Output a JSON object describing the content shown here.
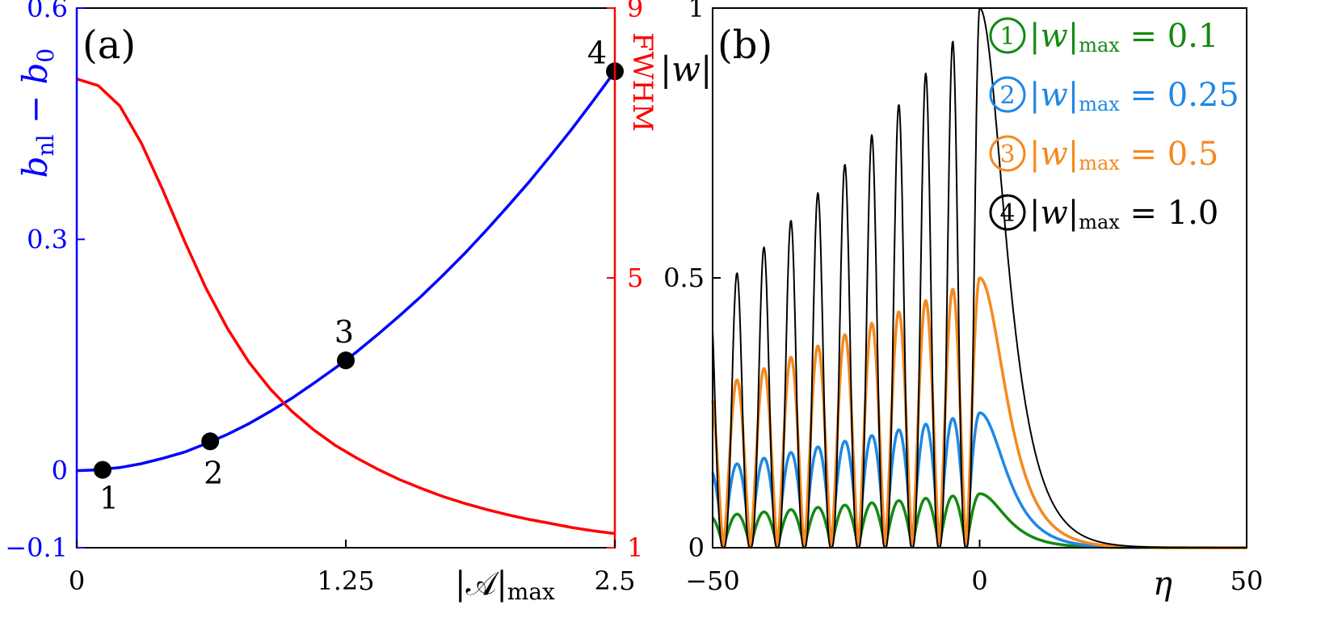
{
  "chart_data": [
    {
      "panel_label": "(a)",
      "type": "line",
      "xlabel_main": "|𝒜|",
      "xlabel_sub": "max",
      "xlim": [
        0,
        2.5
      ],
      "xticks": [
        "0",
        "1.25",
        "2.5"
      ],
      "left_axis": {
        "label_main": "b",
        "label_sub1": "nl",
        "label_mid": " − b",
        "label_sub2": "0",
        "color": "#0000ff",
        "ylim": [
          -0.1,
          0.6
        ],
        "ticks": [
          "−0.1",
          "0",
          "0.3",
          "0.6"
        ]
      },
      "right_axis": {
        "label": "FWHM",
        "color": "#ff0000",
        "ylim": [
          1,
          9
        ],
        "ticks": [
          "1",
          "5",
          "9"
        ]
      },
      "series": [
        {
          "axis": "left",
          "color": "#0000ff",
          "x": [
            0.0,
            0.1,
            0.2,
            0.3,
            0.4,
            0.5,
            0.6,
            0.7,
            0.8,
            0.9,
            1.0,
            1.1,
            1.2,
            1.25,
            1.3,
            1.4,
            1.5,
            1.6,
            1.7,
            1.8,
            1.9,
            2.0,
            2.1,
            2.2,
            2.3,
            2.4,
            2.5
          ],
          "y": [
            0.0,
            0.001,
            0.004,
            0.009,
            0.016,
            0.024,
            0.035,
            0.047,
            0.061,
            0.077,
            0.094,
            0.113,
            0.133,
            0.143,
            0.154,
            0.177,
            0.201,
            0.226,
            0.253,
            0.281,
            0.311,
            0.342,
            0.374,
            0.408,
            0.443,
            0.48,
            0.518
          ]
        },
        {
          "axis": "right",
          "color": "#ff0000",
          "x": [
            0.0,
            0.1,
            0.2,
            0.3,
            0.4,
            0.5,
            0.6,
            0.7,
            0.8,
            0.9,
            1.0,
            1.1,
            1.2,
            1.3,
            1.4,
            1.5,
            1.6,
            1.7,
            1.8,
            1.9,
            2.0,
            2.1,
            2.2,
            2.3,
            2.4,
            2.5
          ],
          "y": [
            7.95,
            7.85,
            7.55,
            7.0,
            6.3,
            5.55,
            4.85,
            4.25,
            3.75,
            3.35,
            3.02,
            2.75,
            2.52,
            2.33,
            2.16,
            2.01,
            1.88,
            1.76,
            1.66,
            1.57,
            1.49,
            1.42,
            1.36,
            1.3,
            1.25,
            1.21
          ]
        }
      ],
      "points": [
        {
          "label": "1",
          "x": 0.12,
          "y": 0.001
        },
        {
          "label": "2",
          "x": 0.62,
          "y": 0.038
        },
        {
          "label": "3",
          "x": 1.25,
          "y": 0.143
        },
        {
          "label": "4",
          "x": 2.5,
          "y": 0.518
        }
      ]
    },
    {
      "panel_label": "(b)",
      "type": "line",
      "xlabel": "η",
      "xlim": [
        -50,
        50
      ],
      "xticks": [
        "−50",
        "0",
        "50"
      ],
      "ylabel": "|w|",
      "ylim": [
        0,
        1
      ],
      "yticks": [
        "0",
        "0.5",
        "1"
      ],
      "series": [
        {
          "marker": "1",
          "name_prefix": "|w|",
          "name_sub": "max",
          "name_value": "= 0.1",
          "color": "#138a13",
          "amplitude": 0.1,
          "width": 1.6
        },
        {
          "marker": "2",
          "name_prefix": "|w|",
          "name_sub": "max",
          "name_value": "= 0.25",
          "color": "#1e88e5",
          "amplitude": 0.25,
          "width": 1.6
        },
        {
          "marker": "3",
          "name_prefix": "|w|",
          "name_sub": "max",
          "name_value": "= 0.5",
          "color": "#f5891e",
          "amplitude": 0.5,
          "width": 1.6
        },
        {
          "marker": "4",
          "name_prefix": "|w|",
          "name_sub": "max",
          "name_value": "= 1.0",
          "color": "#000000",
          "amplitude": 1.0,
          "width": 0.9
        }
      ]
    }
  ]
}
